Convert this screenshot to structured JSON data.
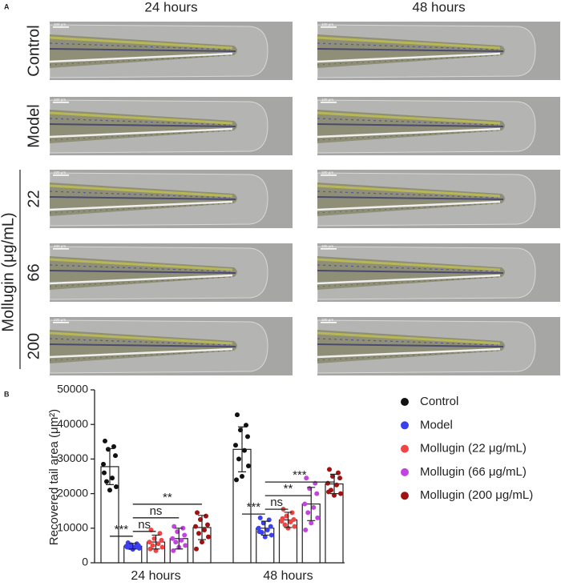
{
  "figure_a": {
    "panel_label": "A",
    "column_titles": [
      "24 hours",
      "48 hours"
    ],
    "row_labels": [
      "Control",
      "Model",
      "22",
      "66",
      "200"
    ],
    "group_label": "Mollugin (μg/mL)",
    "scale_bar_label": "100 μm"
  },
  "chart_data": {
    "type": "bar",
    "panel_label": "B",
    "categories": [
      "24 hours",
      "48 hours"
    ],
    "ylabel": "Recovered tail area (μm²)",
    "ylim": [
      0,
      50000
    ],
    "yticks": [
      0,
      10000,
      20000,
      30000,
      40000,
      50000
    ],
    "series": [
      {
        "name": "Control",
        "color": "#111111",
        "values": [
          27800,
          32800
        ],
        "errors": [
          5200,
          6500
        ],
        "points": [
          [
            35200,
            33600,
            32800,
            31000,
            28500,
            24500,
            23500,
            22000,
            21000,
            26000
          ],
          [
            42800,
            39800,
            38400,
            36500,
            34000,
            32500,
            30000,
            28000,
            25000,
            24000
          ]
        ]
      },
      {
        "name": "Model",
        "color": "#3a3ff0",
        "values": [
          4800,
          10000
        ],
        "errors": [
          800,
          2000
        ],
        "points": [
          [
            5800,
            5500,
            5200,
            5000,
            4800,
            4600,
            4400,
            4200,
            3900,
            4500
          ],
          [
            13000,
            12400,
            11500,
            10500,
            10000,
            9500,
            8800,
            8000,
            7500,
            9000
          ]
        ]
      },
      {
        "name": "Mollugin (22 μg/mL)",
        "color": "#f04545",
        "values": [
          6000,
          12400
        ],
        "errors": [
          2000,
          2200
        ],
        "points": [
          [
            9500,
            8500,
            7000,
            6500,
            6000,
            5500,
            5000,
            4500,
            3500,
            4000
          ],
          [
            15500,
            14500,
            13500,
            12500,
            12000,
            11800,
            11000,
            10500,
            10000,
            12800
          ]
        ]
      },
      {
        "name": "Mollugin (66 μg/mL)",
        "color": "#c244e0",
        "values": [
          7000,
          17000
        ],
        "errors": [
          3000,
          4800
        ],
        "points": [
          [
            10500,
            10000,
            9000,
            8000,
            7000,
            6500,
            6000,
            5000,
            4500,
            3500
          ],
          [
            24500,
            23000,
            21500,
            20000,
            17000,
            16000,
            14500,
            13000,
            11500,
            9500
          ]
        ]
      },
      {
        "name": "Mollugin (200 μg/mL)",
        "color": "#a01212",
        "values": [
          10200,
          22800
        ],
        "errors": [
          3500,
          2800
        ],
        "points": [
          [
            14500,
            13500,
            12500,
            11000,
            10500,
            9500,
            8500,
            7500,
            6000,
            4000
          ],
          [
            27000,
            26000,
            25000,
            24500,
            23000,
            22500,
            21000,
            20000,
            19500,
            20500
          ]
        ]
      }
    ],
    "annotations": [
      {
        "label": "***",
        "category": 0,
        "from": 0,
        "to": 1
      },
      {
        "label": "ns",
        "category": 0,
        "from": 1,
        "to": 2
      },
      {
        "label": "ns",
        "category": 0,
        "from": 1,
        "to": 3
      },
      {
        "label": "**",
        "category": 0,
        "from": 1,
        "to": 4
      },
      {
        "label": "***",
        "category": 1,
        "from": 0,
        "to": 1
      },
      {
        "label": "ns",
        "category": 1,
        "from": 1,
        "to": 2
      },
      {
        "label": "**",
        "category": 1,
        "from": 1,
        "to": 3
      },
      {
        "label": "***",
        "category": 1,
        "from": 1,
        "to": 4
      }
    ]
  }
}
